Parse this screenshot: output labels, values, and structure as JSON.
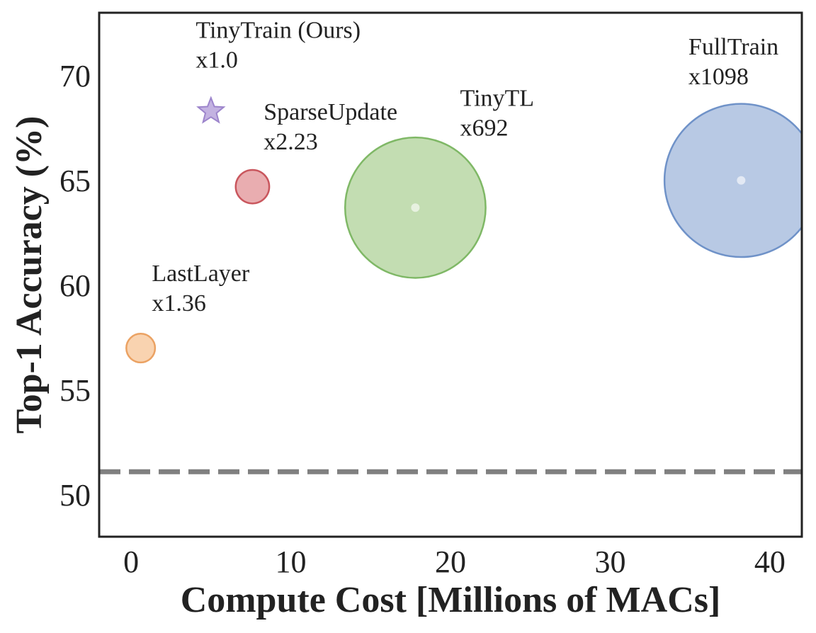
{
  "chart_data": {
    "type": "scatter",
    "title": "",
    "xlabel": "Compute Cost [Millions of MACs]",
    "ylabel": "Top-1 Accuracy (%)",
    "xlim": [
      -2,
      42
    ],
    "ylim": [
      48,
      73
    ],
    "xticks": [
      "0",
      "10",
      "20",
      "30",
      "40"
    ],
    "yticks": [
      "50",
      "55",
      "60",
      "65",
      "70"
    ],
    "grid": false,
    "reference_line": {
      "y": 51.1,
      "style": "dashed",
      "color": "#808080"
    },
    "points": [
      {
        "name": "TinyTrain (Ours)",
        "factor": "x1.0",
        "x": 5.0,
        "y": 68.3,
        "marker": "star",
        "color": "#b9a5dc",
        "edge": "#9d85cc"
      },
      {
        "name": "SparseUpdate",
        "factor": "x2.23",
        "x": 7.6,
        "y": 64.7,
        "marker": "circle",
        "color": "#e08a8e",
        "edge": "#c9565d"
      },
      {
        "name": "TinyTL",
        "factor": "x692",
        "x": 17.8,
        "y": 63.7,
        "marker": "circle",
        "color": "#a9cf91",
        "edge": "#7fb866"
      },
      {
        "name": "FullTrain",
        "factor": "x1098",
        "x": 38.2,
        "y": 65.0,
        "marker": "circle",
        "color": "#9ab2d8",
        "edge": "#6f92c8"
      },
      {
        "name": "LastLayer",
        "factor": "x1.36",
        "x": 0.6,
        "y": 57.0,
        "marker": "circle",
        "color": "#f6c08f",
        "edge": "#eba263"
      }
    ]
  }
}
